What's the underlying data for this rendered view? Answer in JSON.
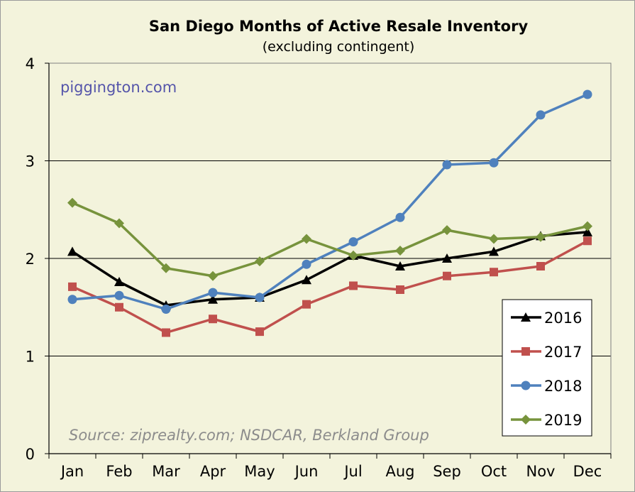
{
  "chart_data": {
    "type": "line",
    "title": "San Diego Months of Active Resale Inventory",
    "subtitle": "(excluding contingent)",
    "watermark": "piggington.com",
    "source": "Source: ziprealty.com; NSDCAR, Berkland Group",
    "categories": [
      "Jan",
      "Feb",
      "Mar",
      "Apr",
      "May",
      "Jun",
      "Jul",
      "Aug",
      "Sep",
      "Oct",
      "Nov",
      "Dec"
    ],
    "ylim": [
      0,
      4
    ],
    "yticks": [
      "0",
      "1",
      "2",
      "3",
      "4"
    ],
    "grid": true,
    "legend_position": "bottom-right",
    "series": [
      {
        "name": "2016",
        "color": "#000000",
        "marker": "triangle",
        "values": [
          2.07,
          1.76,
          1.52,
          1.58,
          1.6,
          1.78,
          2.03,
          1.92,
          2.0,
          2.07,
          2.23,
          2.27
        ]
      },
      {
        "name": "2017",
        "color": "#c0504d",
        "marker": "square",
        "values": [
          1.71,
          1.5,
          1.24,
          1.38,
          1.25,
          1.53,
          1.72,
          1.68,
          1.82,
          1.86,
          1.92,
          2.18
        ]
      },
      {
        "name": "2018",
        "color": "#4f81bd",
        "marker": "circle",
        "values": [
          1.58,
          1.62,
          1.48,
          1.65,
          1.6,
          1.94,
          2.17,
          2.42,
          2.96,
          2.98,
          3.47,
          3.68
        ]
      },
      {
        "name": "2019",
        "color": "#77933c",
        "marker": "diamond",
        "values": [
          2.57,
          2.36,
          1.9,
          1.82,
          1.97,
          2.2,
          2.03,
          2.08,
          2.29,
          2.2,
          2.22,
          2.33
        ]
      }
    ],
    "colors": {
      "plot_background": "#f3f3dc",
      "watermark": "#5555aa"
    }
  }
}
